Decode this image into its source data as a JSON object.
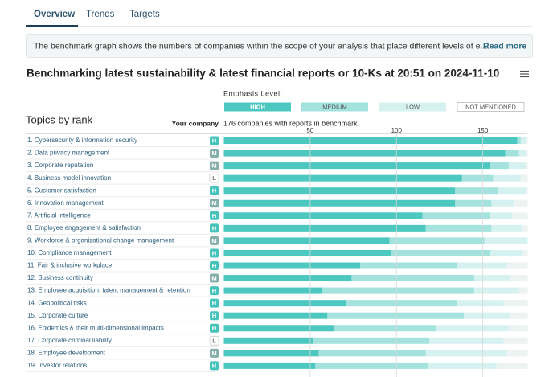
{
  "tabs": [
    "Overview",
    "Trends",
    "Targets"
  ],
  "banner": {
    "text": "The benchmark graph shows the numbers of companies within the scope of your analysis that place different levels of e...",
    "link": "Read more"
  },
  "chart_data": {
    "type": "bar",
    "orientation": "horizontal",
    "stacked": true,
    "title": "Benchmarking latest sustainability & latest financial reports or 10-Ks at 20:51 on 2024-11-10",
    "legend_title": "Emphasis Level:",
    "y_header": "Topics by rank",
    "company_header": "Your company",
    "x_label": "176 companies with reports in benchmark",
    "categories": [
      "1. Cybersecurity & information security",
      "2. Data privacy management",
      "3. Corporate reputation",
      "4. Business model innovation",
      "5. Customer satisfaction",
      "6. Innovation management",
      "7. Artificial intelligence",
      "8. Employee engagement & satisfaction",
      "9. Workforce & organizational change management",
      "10. Compliance management",
      "11. Fair & inclusive workplace",
      "12. Business continuity",
      "13. Employee acquisition, talent management & retention",
      "14. Geopolitical risks",
      "15. Corporate culture",
      "16. Epidemics & their multi-dimensional impacts",
      "17. Corporate criminal liability",
      "18. Employee development",
      "19. Investor relations"
    ],
    "company_rating": [
      "H",
      "M",
      "M",
      "L",
      "H",
      "M",
      "H",
      "H",
      "M",
      "H",
      "H",
      "M",
      "H",
      "H",
      "H",
      "H",
      "L",
      "M",
      "H"
    ],
    "series": [
      {
        "name": "HIGH",
        "color": "#4cc8c0",
        "values": [
          170,
          163,
          154,
          138,
          134,
          134,
          115,
          117,
          96,
          97,
          79,
          74,
          57,
          71,
          60,
          64,
          52,
          55,
          53
        ]
      },
      {
        "name": "MEDIUM",
        "color": "#a4e2de",
        "values": [
          2,
          8,
          11,
          18,
          25,
          21,
          39,
          38,
          55,
          57,
          56,
          71,
          88,
          64,
          79,
          59,
          67,
          62,
          65
        ]
      },
      {
        "name": "LOW",
        "color": "#d6f2f0",
        "values": [
          3,
          4,
          10,
          16,
          16,
          13,
          13,
          18,
          25,
          19,
          29,
          21,
          26,
          27,
          27,
          42,
          43,
          47,
          40
        ]
      },
      {
        "name": "NOT MENTIONED",
        "color": "#edf2f2",
        "values": [
          1,
          1,
          1,
          4,
          1,
          8,
          9,
          3,
          0,
          3,
          12,
          10,
          5,
          14,
          10,
          11,
          14,
          12,
          18
        ]
      }
    ],
    "xlim": [
      0,
      176
    ],
    "xticks": [
      50,
      100,
      150
    ],
    "grid": true
  }
}
